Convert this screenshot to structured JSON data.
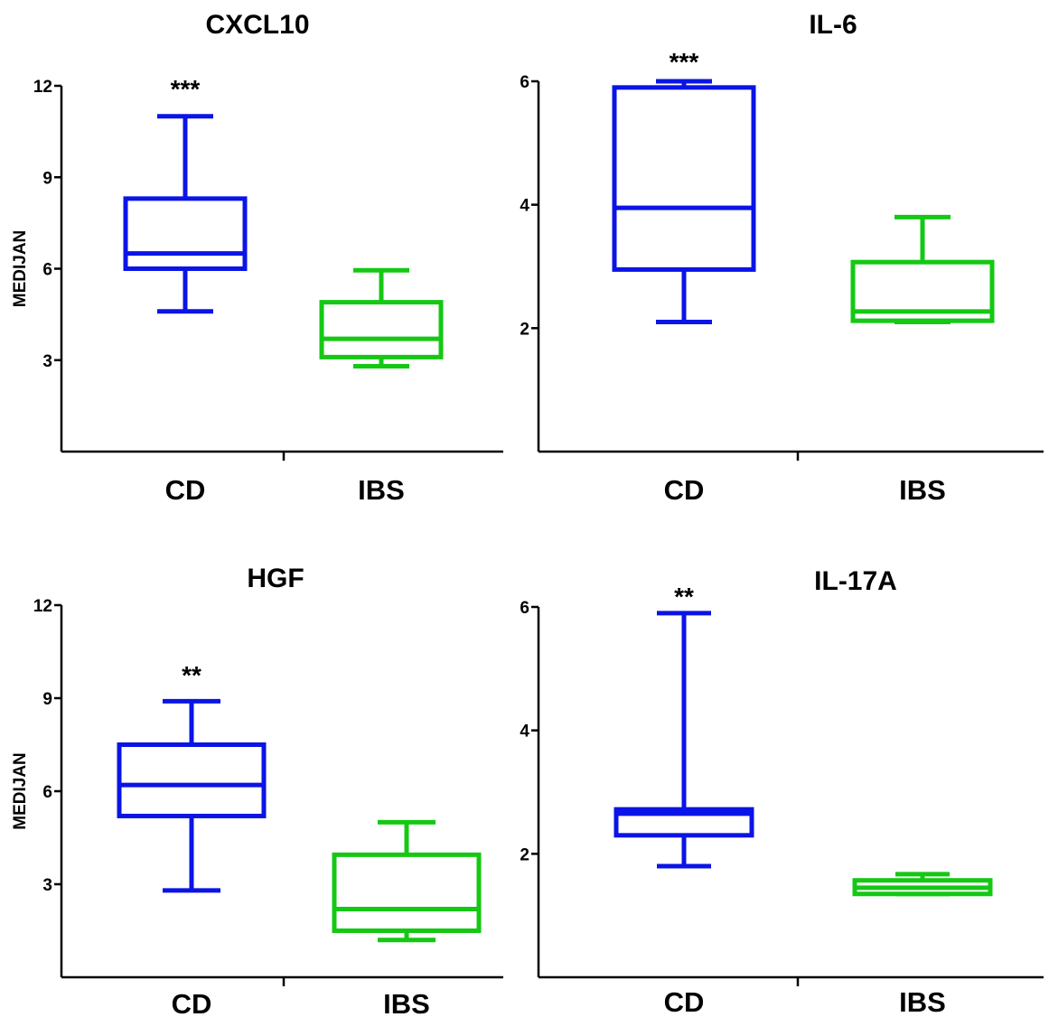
{
  "chart_data": [
    {
      "type": "box",
      "title": "CXCL10",
      "ylabel": "MEDIJAN",
      "ylim": [
        0,
        12
      ],
      "yticks": [
        3,
        6,
        9,
        12
      ],
      "categories": [
        "CD",
        "IBS"
      ],
      "boxes": [
        {
          "category": "CD",
          "color": "#0a14e6",
          "whisker_low": 4.6,
          "q1": 6.0,
          "median": 6.5,
          "q3": 8.3,
          "whisker_high": 11.0,
          "significance": "***"
        },
        {
          "category": "IBS",
          "color": "#14c814",
          "whisker_low": 2.8,
          "q1": 3.1,
          "median": 3.7,
          "q3": 4.9,
          "whisker_high": 5.95,
          "significance": ""
        }
      ]
    },
    {
      "type": "box",
      "title": "IL-6",
      "ylabel": "",
      "ylim": [
        0,
        6
      ],
      "yticks": [
        2,
        4,
        6
      ],
      "categories": [
        "CD",
        "IBS"
      ],
      "boxes": [
        {
          "category": "CD",
          "color": "#0a14e6",
          "whisker_low": 2.1,
          "q1": 2.95,
          "median": 3.95,
          "q3": 5.9,
          "whisker_high": 6.0,
          "significance": "***"
        },
        {
          "category": "IBS",
          "color": "#14c814",
          "whisker_low": 2.1,
          "q1": 2.12,
          "median": 2.27,
          "q3": 3.07,
          "whisker_high": 3.8,
          "significance": ""
        }
      ]
    },
    {
      "type": "box",
      "title": "HGF",
      "ylabel": "MEDIJAN",
      "ylim": [
        0,
        12
      ],
      "yticks": [
        3,
        6,
        9,
        12
      ],
      "categories": [
        "CD",
        "IBS"
      ],
      "boxes": [
        {
          "category": "CD",
          "color": "#0a14e6",
          "whisker_low": 2.8,
          "q1": 5.2,
          "median": 6.2,
          "q3": 7.5,
          "whisker_high": 8.9,
          "significance": "**"
        },
        {
          "category": "IBS",
          "color": "#14c814",
          "whisker_low": 1.2,
          "q1": 1.5,
          "median": 2.2,
          "q3": 3.95,
          "whisker_high": 5.0,
          "significance": ""
        }
      ]
    },
    {
      "type": "box",
      "title": "IL-17A",
      "ylabel": "",
      "ylim": [
        0,
        6
      ],
      "yticks": [
        2,
        4,
        6
      ],
      "categories": [
        "CD",
        "IBS"
      ],
      "boxes": [
        {
          "category": "CD",
          "color": "#0a14e6",
          "whisker_low": 1.8,
          "q1": 2.3,
          "median": 2.65,
          "q3": 2.72,
          "whisker_high": 5.9,
          "significance": "**"
        },
        {
          "category": "IBS",
          "color": "#14c814",
          "whisker_low": 1.35,
          "q1": 1.35,
          "median": 1.45,
          "q3": 1.57,
          "whisker_high": 1.67,
          "significance": ""
        }
      ]
    }
  ]
}
